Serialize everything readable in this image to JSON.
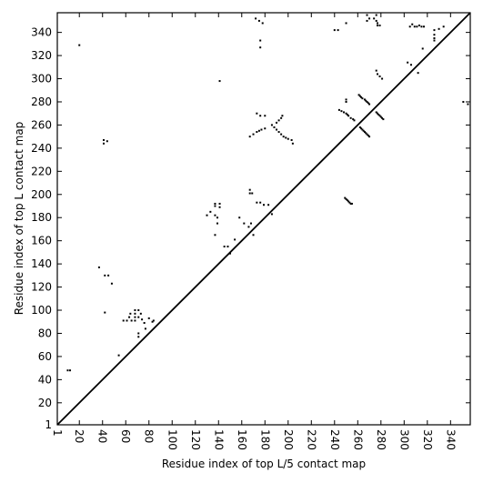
{
  "chart_data": {
    "type": "scatter",
    "xlabel": "Residue index of top L/5 contact map",
    "ylabel": "Residue index of top L contact map",
    "xlim": [
      1,
      357
    ],
    "ylim": [
      1,
      357
    ],
    "xticks": [
      1,
      20,
      40,
      60,
      80,
      100,
      120,
      140,
      160,
      180,
      200,
      220,
      240,
      260,
      280,
      300,
      320,
      340
    ],
    "yticks": [
      1,
      20,
      40,
      60,
      80,
      100,
      120,
      140,
      160,
      180,
      200,
      220,
      240,
      260,
      280,
      300,
      320,
      340
    ],
    "color": "#000000",
    "x": [
      10,
      12,
      20,
      37,
      42,
      45,
      48,
      42,
      41,
      41,
      44,
      54,
      58,
      61,
      63,
      64,
      65,
      68,
      68,
      68,
      68,
      71,
      71,
      73,
      74,
      76,
      80,
      83,
      84,
      71,
      71,
      77,
      141,
      130,
      133,
      137,
      137,
      137,
      141,
      141,
      139,
      139,
      137,
      145,
      148,
      150,
      154,
      158,
      162,
      166,
      168,
      170,
      167,
      167,
      169,
      173,
      176,
      179,
      183,
      186,
      167,
      170,
      173,
      175,
      177,
      180,
      173,
      176,
      180,
      186,
      188,
      190,
      192,
      194,
      196,
      198,
      200,
      203,
      204,
      190,
      192,
      194,
      195,
      172,
      175,
      178,
      176,
      176,
      250,
      250,
      250,
      240,
      243,
      244,
      246,
      248,
      250,
      251,
      252,
      254,
      256,
      257,
      261,
      262,
      263,
      264,
      266,
      267,
      268,
      269,
      270,
      262,
      263,
      264,
      265,
      266,
      267,
      268,
      269,
      270,
      276,
      277,
      278,
      279,
      280,
      281,
      282,
      249,
      250,
      251,
      252,
      253,
      254,
      255,
      268,
      268,
      270,
      274,
      276,
      277,
      277,
      279,
      276,
      276,
      277,
      279,
      281,
      303,
      306,
      305,
      307,
      309,
      311,
      313,
      315,
      317,
      312,
      316,
      326,
      326,
      326,
      326,
      330,
      334,
      351,
      355
    ],
    "values": [
      48,
      48,
      329,
      137,
      130,
      130,
      123,
      98,
      244,
      247,
      246,
      61,
      91,
      91,
      94,
      97,
      91,
      91,
      94,
      97,
      100,
      100,
      94,
      97,
      92,
      89,
      93,
      90,
      91,
      80,
      77,
      84,
      298,
      182,
      185,
      182,
      190,
      192,
      192,
      189,
      180,
      175,
      165,
      155,
      155,
      149,
      161,
      180,
      175,
      172,
      175,
      165,
      201,
      204,
      201,
      193,
      193,
      191,
      191,
      183,
      250,
      252,
      254,
      255,
      256,
      257,
      270,
      268,
      268,
      260,
      258,
      256,
      254,
      252,
      250,
      249,
      248,
      247,
      244,
      262,
      264,
      266,
      268,
      352,
      350,
      348,
      333,
      327,
      348,
      280,
      282,
      342,
      342,
      273,
      272,
      271,
      270,
      269,
      268,
      266,
      265,
      264,
      286,
      285,
      284,
      283,
      282,
      281,
      280,
      279,
      278,
      258,
      257,
      256,
      255,
      254,
      253,
      252,
      251,
      250,
      271,
      270,
      269,
      268,
      267,
      266,
      265,
      197,
      196,
      195,
      194,
      193,
      192,
      192,
      355,
      350,
      352,
      352,
      350,
      348,
      346,
      346,
      355,
      307,
      304,
      302,
      300,
      314,
      312,
      345,
      347,
      345,
      345,
      346,
      345,
      345,
      305,
      326,
      342,
      338,
      335,
      333,
      343,
      345,
      280,
      278
    ]
  }
}
